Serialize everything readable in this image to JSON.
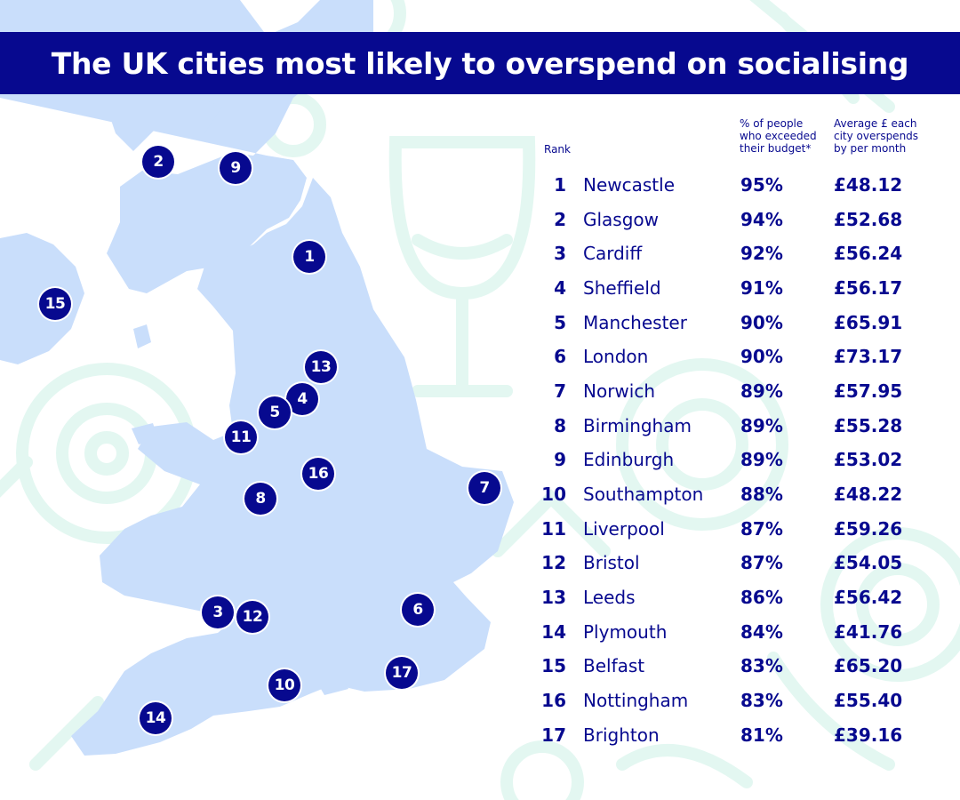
{
  "title": "The UK cities most likely to overspend on socialising",
  "colors": {
    "navy": "#07098f",
    "land": "#c9defb",
    "decor": "#e3f7f1",
    "white": "#ffffff"
  },
  "table": {
    "headers": {
      "rank": "Rank",
      "pct": "% of people\nwho exceeded\ntheir budget*",
      "amount": "Average £ each\ncity overspends\nby per month"
    },
    "rows": [
      {
        "rank": "1",
        "city": "Newcastle",
        "pct": "95%",
        "amount": "£48.12"
      },
      {
        "rank": "2",
        "city": "Glasgow",
        "pct": "94%",
        "amount": "£52.68"
      },
      {
        "rank": "3",
        "city": "Cardiff",
        "pct": "92%",
        "amount": "£56.24"
      },
      {
        "rank": "4",
        "city": "Sheffield",
        "pct": "91%",
        "amount": "£56.17"
      },
      {
        "rank": "5",
        "city": "Manchester",
        "pct": "90%",
        "amount": "£65.91"
      },
      {
        "rank": "6",
        "city": "London",
        "pct": "90%",
        "amount": "£73.17"
      },
      {
        "rank": "7",
        "city": "Norwich",
        "pct": "89%",
        "amount": "£57.95"
      },
      {
        "rank": "8",
        "city": "Birmingham",
        "pct": "89%",
        "amount": "£55.28"
      },
      {
        "rank": "9",
        "city": "Edinburgh",
        "pct": "89%",
        "amount": "£53.02"
      },
      {
        "rank": "10",
        "city": "Southampton",
        "pct": "88%",
        "amount": "£48.22"
      },
      {
        "rank": "11",
        "city": "Liverpool",
        "pct": "87%",
        "amount": "£59.26"
      },
      {
        "rank": "12",
        "city": "Bristol",
        "pct": "87%",
        "amount": "£54.05"
      },
      {
        "rank": "13",
        "city": "Leeds",
        "pct": "86%",
        "amount": "£56.42"
      },
      {
        "rank": "14",
        "city": "Plymouth",
        "pct": "84%",
        "amount": "£41.76"
      },
      {
        "rank": "15",
        "city": "Belfast",
        "pct": "83%",
        "amount": "£65.20"
      },
      {
        "rank": "16",
        "city": "Nottingham",
        "pct": "83%",
        "amount": "£55.40"
      },
      {
        "rank": "17",
        "city": "Brighton",
        "pct": "81%",
        "amount": "£39.16"
      }
    ]
  }
}
